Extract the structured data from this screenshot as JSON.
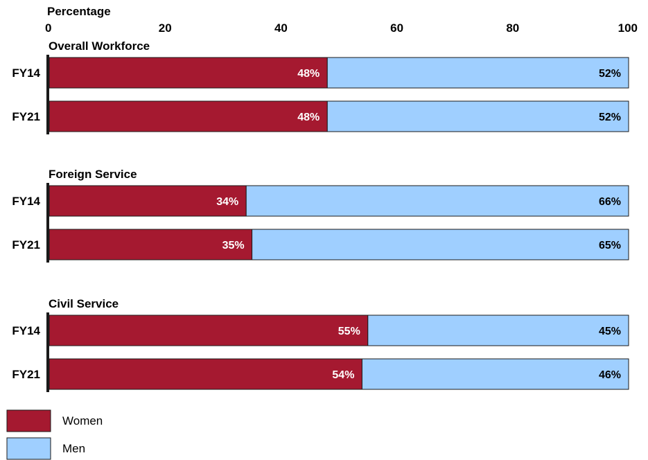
{
  "chart_data": {
    "type": "bar",
    "orientation": "horizontal",
    "stacked": true,
    "xlabel": "Percentage",
    "xlim": [
      0,
      100
    ],
    "xticks": [
      0,
      20,
      40,
      60,
      80,
      100
    ],
    "categories": [
      "FY14",
      "FY21"
    ],
    "groups": [
      {
        "title": "Overall Workforce",
        "series": [
          {
            "name": "Women",
            "values": [
              48,
              48
            ],
            "labels": [
              "48%",
              "48%"
            ]
          },
          {
            "name": "Men",
            "values": [
              52,
              52
            ],
            "labels": [
              "52%",
              "52%"
            ]
          }
        ]
      },
      {
        "title": "Foreign Service",
        "series": [
          {
            "name": "Women",
            "values": [
              34,
              35
            ],
            "labels": [
              "34%",
              "35%"
            ]
          },
          {
            "name": "Men",
            "values": [
              66,
              65
            ],
            "labels": [
              "66%",
              "65%"
            ]
          }
        ]
      },
      {
        "title": "Civil Service",
        "series": [
          {
            "name": "Women",
            "values": [
              55,
              54
            ],
            "labels": [
              "55%",
              "54%"
            ]
          },
          {
            "name": "Men",
            "values": [
              45,
              46
            ],
            "labels": [
              "45%",
              "46%"
            ]
          }
        ]
      }
    ],
    "legend": {
      "position": "bottom-left",
      "items": [
        {
          "name": "Women",
          "color": "#a51930"
        },
        {
          "name": "Men",
          "color": "#9fcfff"
        }
      ]
    },
    "colors": {
      "women": "#a51930",
      "men": "#9fcfff",
      "outline": "#1a1a1a"
    },
    "grid": false
  }
}
